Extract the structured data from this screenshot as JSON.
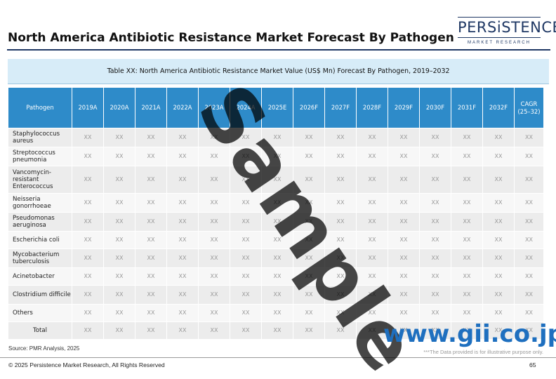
{
  "page": {
    "title": "North America Antibiotic Resistance Market Forecast By Pathogen",
    "logo_main": "PERSiSTENCE",
    "logo_sub": "MARKET RESEARCH"
  },
  "table": {
    "caption": "Table XX: North America Antibiotic Resistance Market Value (US$ Mn) Forecast By Pathogen, 2019–2032",
    "headers": [
      "Pathogen",
      "2019A",
      "2020A",
      "2021A",
      "2022A",
      "2023A",
      "2024A",
      "2025E",
      "2026F",
      "2027F",
      "2028F",
      "2029F",
      "2030F",
      "2031F",
      "2032F",
      "CAGR (25–32)"
    ],
    "rows": [
      {
        "label": "Staphylococcus aureus",
        "values": [
          "XX",
          "XX",
          "XX",
          "XX",
          "XX",
          "XX",
          "XX",
          "XX",
          "XX",
          "XX",
          "XX",
          "XX",
          "XX",
          "XX",
          "XX"
        ]
      },
      {
        "label": "Streptococcus pneumonia",
        "values": [
          "XX",
          "XX",
          "XX",
          "XX",
          "XX",
          "XX",
          "XX",
          "XX",
          "XX",
          "XX",
          "XX",
          "XX",
          "XX",
          "XX",
          "XX"
        ]
      },
      {
        "label": "Vancomycin-resistant Enterococcus",
        "values": [
          "XX",
          "XX",
          "XX",
          "XX",
          "XX",
          "XX",
          "XX",
          "XX",
          "XX",
          "XX",
          "XX",
          "XX",
          "XX",
          "XX",
          "XX"
        ]
      },
      {
        "label": "Neisseria gonorrhoeae",
        "values": [
          "XX",
          "XX",
          "XX",
          "XX",
          "XX",
          "XX",
          "XX",
          "XX",
          "XX",
          "XX",
          "XX",
          "XX",
          "XX",
          "XX",
          "XX"
        ]
      },
      {
        "label": "Pseudomonas aeruginosa",
        "values": [
          "XX",
          "XX",
          "XX",
          "XX",
          "XX",
          "XX",
          "XX",
          "XX",
          "XX",
          "XX",
          "XX",
          "XX",
          "XX",
          "XX",
          "XX"
        ]
      },
      {
        "label": "Escherichia coli",
        "values": [
          "XX",
          "XX",
          "XX",
          "XX",
          "XX",
          "XX",
          "XX",
          "XX",
          "XX",
          "XX",
          "XX",
          "XX",
          "XX",
          "XX",
          "XX"
        ]
      },
      {
        "label": "Mycobacterium tuberculosis",
        "values": [
          "XX",
          "XX",
          "XX",
          "XX",
          "XX",
          "XX",
          "XX",
          "XX",
          "XX",
          "XX",
          "XX",
          "XX",
          "XX",
          "XX",
          "XX"
        ]
      },
      {
        "label": "Acinetobacter",
        "values": [
          "XX",
          "XX",
          "XX",
          "XX",
          "XX",
          "XX",
          "XX",
          "XX",
          "XX",
          "XX",
          "XX",
          "XX",
          "XX",
          "XX",
          "XX"
        ]
      },
      {
        "label": "Clostridium difficile",
        "values": [
          "XX",
          "XX",
          "XX",
          "XX",
          "XX",
          "XX",
          "XX",
          "XX",
          "XX",
          "XX",
          "XX",
          "XX",
          "XX",
          "XX",
          "XX"
        ]
      },
      {
        "label": "Others",
        "values": [
          "XX",
          "XX",
          "XX",
          "XX",
          "XX",
          "XX",
          "XX",
          "XX",
          "XX",
          "XX",
          "XX",
          "XX",
          "XX",
          "XX",
          "XX"
        ]
      },
      {
        "label": "Total",
        "values": [
          "XX",
          "XX",
          "XX",
          "XX",
          "XX",
          "XX",
          "XX",
          "XX",
          "XX",
          "XX",
          "XX",
          "XX",
          "XX",
          "XX",
          "XX"
        ]
      }
    ]
  },
  "footer": {
    "source": "Source: PMR Analysis, 2025",
    "note": "***The Data provided is for illustrative purpose only.",
    "copyright": "© 2025 Persistence Market Research, All Rights Reserved",
    "page_number": "65"
  },
  "overlay": {
    "watermark": "Sample",
    "site": "www.gii.co.jp"
  }
}
